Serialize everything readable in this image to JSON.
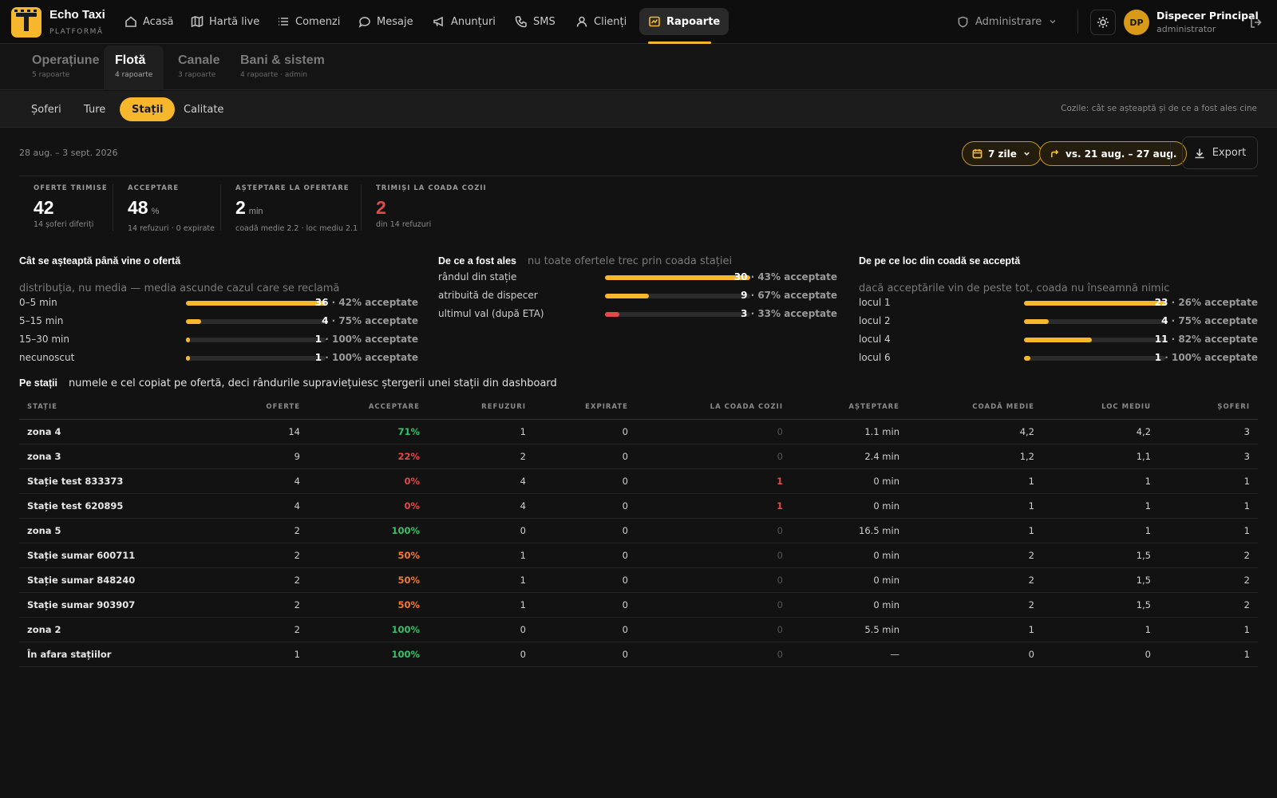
{
  "brand": {
    "name": "Echo Taxi",
    "subtitle": "PLATFORMĂ"
  },
  "nav": {
    "items": [
      {
        "label": "Acasă"
      },
      {
        "label": "Hartă live"
      },
      {
        "label": "Comenzi"
      },
      {
        "label": "Mesaje"
      },
      {
        "label": "Anunțuri"
      },
      {
        "label": "SMS"
      },
      {
        "label": "Clienți"
      },
      {
        "label": "Rapoarte"
      }
    ],
    "active": "Rapoarte",
    "admin_label": "Administrare"
  },
  "user": {
    "initials": "DP",
    "name": "Dispecer Principal",
    "role": "administrator"
  },
  "section_tabs": [
    {
      "label": "Operațiune",
      "sub": "5 rapoarte"
    },
    {
      "label": "Flotă",
      "sub": "4 rapoarte"
    },
    {
      "label": "Canale",
      "sub": "3 rapoarte"
    },
    {
      "label": "Bani & sistem",
      "sub": "4 rapoarte · admin"
    }
  ],
  "sub_tabs": [
    "Șoferi",
    "Ture",
    "Stații",
    "Calitate"
  ],
  "sub_tabs_note": "Cozile: cât se așteaptă și de ce a fost ales cine",
  "toolbar": {
    "date_range": "28 aug. – 3 sept. 2026",
    "period": "7 zile",
    "compare": "vs. 21 aug. – 27 aug.",
    "export": "Export"
  },
  "kpis": [
    {
      "label": "OFERTE TRIMISE",
      "value": "42",
      "unit": "",
      "sub": "14 șoferi diferiți"
    },
    {
      "label": "ACCEPTARE",
      "value": "48",
      "unit": "%",
      "sub": "14 refuzuri · 0 expirate"
    },
    {
      "label": "AȘTEPTARE LA OFERTARE",
      "value": "2",
      "unit": "min",
      "sub": "coadă medie 2.2 · loc mediu 2.1"
    },
    {
      "label": "TRIMIȘI LA COADA COZII",
      "value": "2",
      "unit": "",
      "sub": "din 14 refuzuri"
    }
  ],
  "panels": {
    "wait": {
      "title": "Cât se așteaptă până vine o ofertă",
      "note": "distribuția, nu media — media ascunde cazul care se reclamă",
      "rows": [
        {
          "label": "0–5 min",
          "count": "36",
          "pct": " · 42% acceptate",
          "fill": 1.0
        },
        {
          "label": "5–15 min",
          "count": "4",
          "pct": " · 75% acceptate",
          "fill": 0.11
        },
        {
          "label": "15–30 min",
          "count": "1",
          "pct": " · 100% acceptate",
          "fill": 0.028
        },
        {
          "label": "necunoscut",
          "count": "1",
          "pct": " · 100% acceptate",
          "fill": 0.028
        }
      ]
    },
    "why": {
      "title": "De ce a fost ales",
      "note": "nu toate ofertele trec prin coada stației",
      "rows": [
        {
          "label": "rândul din stație",
          "count": "30",
          "pct": " · 43% acceptate",
          "fill": 1.0
        },
        {
          "label": "atribuită de dispecer",
          "count": "9",
          "pct": " · 67% acceptate",
          "fill": 0.3
        },
        {
          "label": "ultimul val (după ETA)",
          "count": "3",
          "pct": " · 33% acceptate",
          "fill": 0.1,
          "color": "red"
        }
      ]
    },
    "place": {
      "title": "De pe ce loc din coadă se acceptă",
      "note": "dacă acceptările vin de peste tot, coada nu înseamnă nimic",
      "rows": [
        {
          "label": "locul 1",
          "count": "23",
          "pct": " · 26% acceptate",
          "fill": 1.0
        },
        {
          "label": "locul 2",
          "count": "4",
          "pct": " · 75% acceptate",
          "fill": 0.174
        },
        {
          "label": "locul 4",
          "count": "11",
          "pct": " · 82% acceptate",
          "fill": 0.478
        },
        {
          "label": "locul 6",
          "count": "1",
          "pct": " · 100% acceptate",
          "fill": 0.043
        }
      ]
    }
  },
  "stations": {
    "title": "Pe stații",
    "note": "numele e cel copiat pe ofertă, deci rândurile supraviețuiesc ștergerii unei stații din dashboard",
    "columns": [
      "STAȚIE",
      "OFERTE",
      "ACCEPTARE",
      "REFUZURI",
      "EXPIRATE",
      "LA COADA COZII",
      "AȘTEPTARE",
      "COADĂ MEDIE",
      "LOC MEDIU",
      "ȘOFERI"
    ],
    "rows": [
      [
        "zona 4",
        "14",
        "71%",
        "1",
        "0",
        "0",
        "1.1 min",
        "4,2",
        "4,2",
        "3"
      ],
      [
        "zona 3",
        "9",
        "22%",
        "2",
        "0",
        "0",
        "2.4 min",
        "1,2",
        "1,1",
        "3"
      ],
      [
        "Stație test 833373",
        "4",
        "0%",
        "4",
        "0",
        "1",
        "0 min",
        "1",
        "1",
        "1"
      ],
      [
        "Stație test 620895",
        "4",
        "0%",
        "4",
        "0",
        "1",
        "0 min",
        "1",
        "1",
        "1"
      ],
      [
        "zona 5",
        "2",
        "100%",
        "0",
        "0",
        "0",
        "16.5 min",
        "1",
        "1",
        "1"
      ],
      [
        "Stație sumar 600711",
        "2",
        "50%",
        "1",
        "0",
        "0",
        "0 min",
        "2",
        "1,5",
        "2"
      ],
      [
        "Stație sumar 848240",
        "2",
        "50%",
        "1",
        "0",
        "0",
        "0 min",
        "2",
        "1,5",
        "2"
      ],
      [
        "Stație sumar 903907",
        "2",
        "50%",
        "1",
        "0",
        "0",
        "0 min",
        "2",
        "1,5",
        "2"
      ],
      [
        "zona 2",
        "2",
        "100%",
        "0",
        "0",
        "0",
        "5.5 min",
        "1",
        "1",
        "1"
      ],
      [
        "În afara stațiilor",
        "1",
        "100%",
        "0",
        "0",
        "0",
        "—",
        "0",
        "0",
        "1"
      ]
    ]
  },
  "colors": {
    "accent": "#f6b72c",
    "good": "#36c26a",
    "bad": "#e24a4a",
    "warn": "#f07a35"
  }
}
